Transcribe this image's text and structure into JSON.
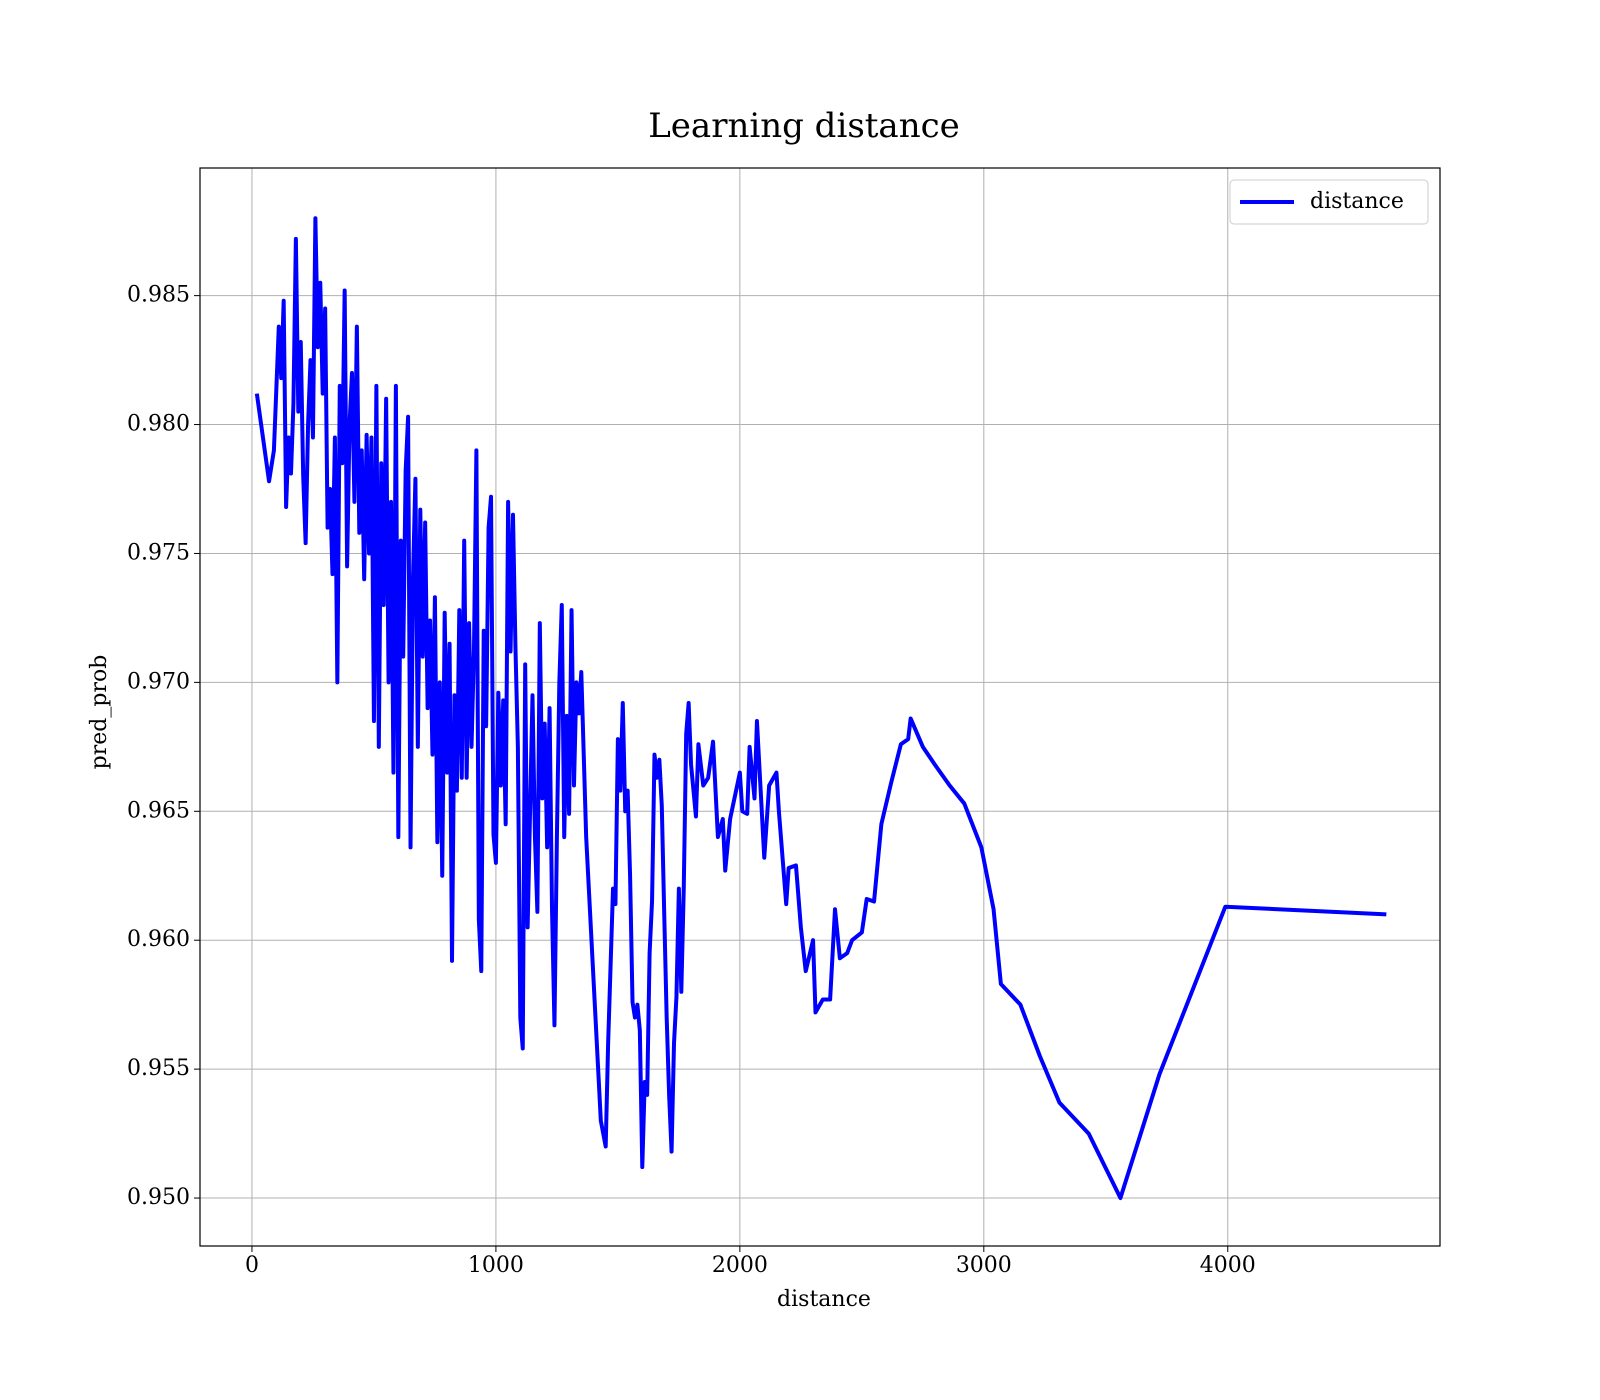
{
  "chart_data": {
    "type": "line",
    "title": "Learning distance",
    "xlabel": "distance",
    "ylabel": "pred_prob",
    "xlim": [
      -213,
      4870
    ],
    "ylim": [
      0.94814,
      0.98995
    ],
    "xticks": [
      0,
      1000,
      2000,
      3000,
      4000
    ],
    "yticks": [
      {
        "value": 0.95,
        "label": "0.950"
      },
      0.955,
      {
        "value": 0.96,
        "label": "0.960"
      },
      0.965,
      {
        "value": 0.97,
        "label": "0.970"
      },
      0.975,
      {
        "value": 0.98,
        "label": "0.980"
      },
      0.985
    ],
    "grid": true,
    "legend": "upper right",
    "x": [
      20,
      70,
      90,
      110,
      120,
      130,
      140,
      150,
      160,
      170,
      180,
      190,
      200,
      210,
      220,
      230,
      240,
      250,
      260,
      270,
      280,
      290,
      300,
      310,
      320,
      330,
      340,
      350,
      360,
      370,
      380,
      390,
      400,
      410,
      420,
      430,
      440,
      450,
      460,
      470,
      480,
      490,
      500,
      510,
      520,
      530,
      540,
      550,
      560,
      570,
      580,
      590,
      600,
      610,
      620,
      630,
      640,
      650,
      660,
      670,
      680,
      690,
      700,
      710,
      720,
      730,
      740,
      750,
      760,
      770,
      780,
      790,
      800,
      810,
      820,
      830,
      840,
      850,
      860,
      870,
      880,
      890,
      900,
      910,
      920,
      930,
      940,
      950,
      960,
      970,
      980,
      990,
      1000,
      1010,
      1020,
      1030,
      1040,
      1050,
      1060,
      1070,
      1080,
      1090,
      1100,
      1110,
      1120,
      1130,
      1140,
      1150,
      1160,
      1170,
      1180,
      1190,
      1200,
      1210,
      1220,
      1230,
      1240,
      1250,
      1260,
      1270,
      1280,
      1290,
      1300,
      1310,
      1320,
      1330,
      1340,
      1350,
      1370,
      1430,
      1440,
      1450,
      1460,
      1470,
      1480,
      1490,
      1500,
      1510,
      1520,
      1530,
      1540,
      1550,
      1560,
      1570,
      1580,
      1590,
      1600,
      1610,
      1620,
      1630,
      1640,
      1650,
      1660,
      1670,
      1680,
      1690,
      1700,
      1710,
      1720,
      1730,
      1740,
      1750,
      1760,
      1770,
      1780,
      1790,
      1800,
      1820,
      1830,
      1850,
      1870,
      1890,
      1910,
      1930,
      1940,
      1960,
      2000,
      2010,
      2030,
      2040,
      2060,
      2070,
      2100,
      2120,
      2150,
      2160,
      2190,
      2200,
      2230,
      2250,
      2270,
      2300,
      2310,
      2340,
      2370,
      2390,
      2410,
      2440,
      2460,
      2500,
      2520,
      2550,
      2580,
      2620,
      2660,
      2690,
      2700,
      2750,
      2800,
      2860,
      2920,
      2990,
      3040,
      3070,
      3150,
      3230,
      3310,
      3430,
      3560,
      3720,
      3990,
      4650
    ],
    "series": [
      {
        "name": "distance",
        "color": "#0000ff",
        "values": [
          0.9812,
          0.9778,
          0.979,
          0.9838,
          0.9818,
          0.9848,
          0.9768,
          0.9795,
          0.9781,
          0.9808,
          0.9872,
          0.9805,
          0.9832,
          0.978,
          0.9754,
          0.98,
          0.9825,
          0.9795,
          0.988,
          0.983,
          0.9855,
          0.9812,
          0.9845,
          0.976,
          0.9775,
          0.9742,
          0.9795,
          0.97,
          0.9815,
          0.9785,
          0.9852,
          0.9745,
          0.98,
          0.982,
          0.977,
          0.9838,
          0.9758,
          0.979,
          0.974,
          0.9796,
          0.975,
          0.9795,
          0.9685,
          0.9815,
          0.9675,
          0.9785,
          0.973,
          0.981,
          0.97,
          0.977,
          0.9665,
          0.9815,
          0.964,
          0.9755,
          0.971,
          0.9782,
          0.9803,
          0.9636,
          0.974,
          0.9779,
          0.9675,
          0.9767,
          0.971,
          0.9762,
          0.969,
          0.9724,
          0.9672,
          0.9733,
          0.9638,
          0.97,
          0.9625,
          0.9727,
          0.9665,
          0.9715,
          0.9592,
          0.9695,
          0.9658,
          0.9728,
          0.9663,
          0.9755,
          0.9663,
          0.9723,
          0.9675,
          0.9712,
          0.979,
          0.9608,
          0.9588,
          0.972,
          0.9683,
          0.976,
          0.9772,
          0.9641,
          0.963,
          0.9696,
          0.966,
          0.9693,
          0.9645,
          0.977,
          0.9712,
          0.9765,
          0.9714,
          0.9675,
          0.957,
          0.9558,
          0.9707,
          0.9605,
          0.965,
          0.9695,
          0.964,
          0.9611,
          0.9723,
          0.9655,
          0.9684,
          0.9636,
          0.969,
          0.9612,
          0.9567,
          0.964,
          0.97,
          0.973,
          0.964,
          0.9687,
          0.9649,
          0.9728,
          0.966,
          0.97,
          0.9688,
          0.9704,
          0.964,
          0.953,
          0.9525,
          0.952,
          0.956,
          0.959,
          0.962,
          0.9614,
          0.9678,
          0.9658,
          0.9692,
          0.965,
          0.9658,
          0.9625,
          0.9576,
          0.957,
          0.9575,
          0.9565,
          0.9512,
          0.9545,
          0.954,
          0.9595,
          0.9615,
          0.9672,
          0.9663,
          0.967,
          0.9652,
          0.961,
          0.957,
          0.954,
          0.9518,
          0.956,
          0.9578,
          0.962,
          0.958,
          0.962,
          0.968,
          0.9692,
          0.9668,
          0.9648,
          0.9676,
          0.966,
          0.9663,
          0.9677,
          0.964,
          0.9647,
          0.9627,
          0.9647,
          0.9665,
          0.965,
          0.9649,
          0.9675,
          0.9655,
          0.9685,
          0.9632,
          0.966,
          0.9665,
          0.965,
          0.9614,
          0.9628,
          0.9629,
          0.9605,
          0.9588,
          0.96,
          0.9572,
          0.9577,
          0.9577,
          0.9612,
          0.9593,
          0.9595,
          0.96,
          0.9603,
          0.9616,
          0.9615,
          0.9645,
          0.9661,
          0.9676,
          0.9678,
          0.9686,
          0.9675,
          0.9668,
          0.966,
          0.9653,
          0.9636,
          0.9612,
          0.9583,
          0.9575,
          0.9555,
          0.9537,
          0.9525,
          0.95,
          0.9548,
          0.9613,
          0.961
        ]
      }
    ]
  }
}
